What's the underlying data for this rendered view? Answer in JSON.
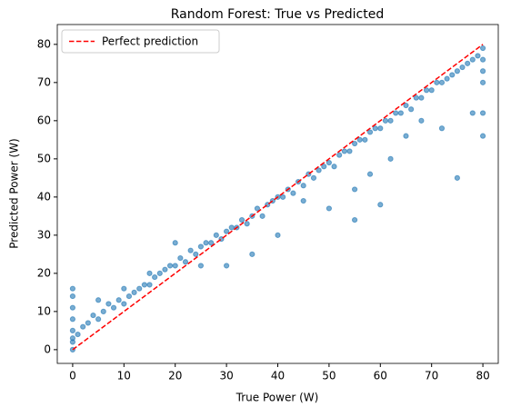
{
  "chart_data": {
    "type": "scatter",
    "title": "Random Forest: True vs Predicted",
    "x_label": "True Power (W)",
    "y_label": "Predicted Power (W)",
    "xlim": [
      -3,
      83
    ],
    "ylim": [
      -3.6,
      85.2
    ],
    "xticks": [
      0,
      10,
      20,
      30,
      40,
      50,
      60,
      70,
      80
    ],
    "yticks": [
      0,
      10,
      20,
      30,
      40,
      50,
      60,
      70,
      80
    ],
    "legend": "upper left",
    "points": {
      "color": "#1f77b4",
      "x": [
        0,
        0,
        0,
        0,
        0,
        0,
        0,
        0,
        1,
        2,
        3,
        4,
        5,
        6,
        7,
        8,
        9,
        10,
        11,
        12,
        13,
        14,
        15,
        16,
        17,
        18,
        19,
        20,
        21,
        22,
        23,
        24,
        25,
        26,
        27,
        28,
        29,
        30,
        31,
        32,
        33,
        34,
        35,
        36,
        37,
        38,
        39,
        40,
        41,
        42,
        43,
        44,
        45,
        46,
        47,
        48,
        49,
        50,
        51,
        52,
        53,
        54,
        55,
        56,
        57,
        58,
        59,
        60,
        61,
        62,
        63,
        64,
        65,
        66,
        67,
        68,
        69,
        70,
        71,
        72,
        73,
        74,
        75,
        76,
        77,
        78,
        79,
        80,
        80,
        80,
        80,
        80,
        45,
        50,
        55,
        58,
        62,
        65,
        68,
        72,
        75,
        78,
        80,
        30,
        35,
        40,
        20,
        10,
        5,
        15,
        25,
        55,
        60
      ],
      "y": [
        0,
        2,
        5,
        8,
        11,
        14,
        16,
        3,
        4,
        6,
        7,
        9,
        8,
        10,
        12,
        11,
        13,
        12,
        14,
        15,
        16,
        17,
        17,
        19,
        20,
        21,
        22,
        22,
        24,
        23,
        26,
        25,
        27,
        28,
        28,
        30,
        29,
        31,
        32,
        32,
        34,
        33,
        35,
        37,
        35,
        38,
        39,
        40,
        40,
        42,
        41,
        44,
        43,
        46,
        45,
        47,
        48,
        49,
        48,
        51,
        52,
        52,
        54,
        55,
        55,
        57,
        58,
        58,
        60,
        60,
        62,
        62,
        64,
        63,
        66,
        66,
        68,
        68,
        70,
        70,
        71,
        72,
        73,
        74,
        75,
        76,
        77,
        79,
        76,
        73,
        70,
        62,
        39,
        37,
        42,
        46,
        50,
        56,
        60,
        58,
        45,
        62,
        56,
        22,
        25,
        30,
        28,
        16,
        13,
        20,
        22,
        34,
        38
      ]
    },
    "line": {
      "name": "Perfect prediction",
      "color": "red",
      "x": [
        0,
        80
      ],
      "y": [
        0,
        80
      ]
    }
  }
}
